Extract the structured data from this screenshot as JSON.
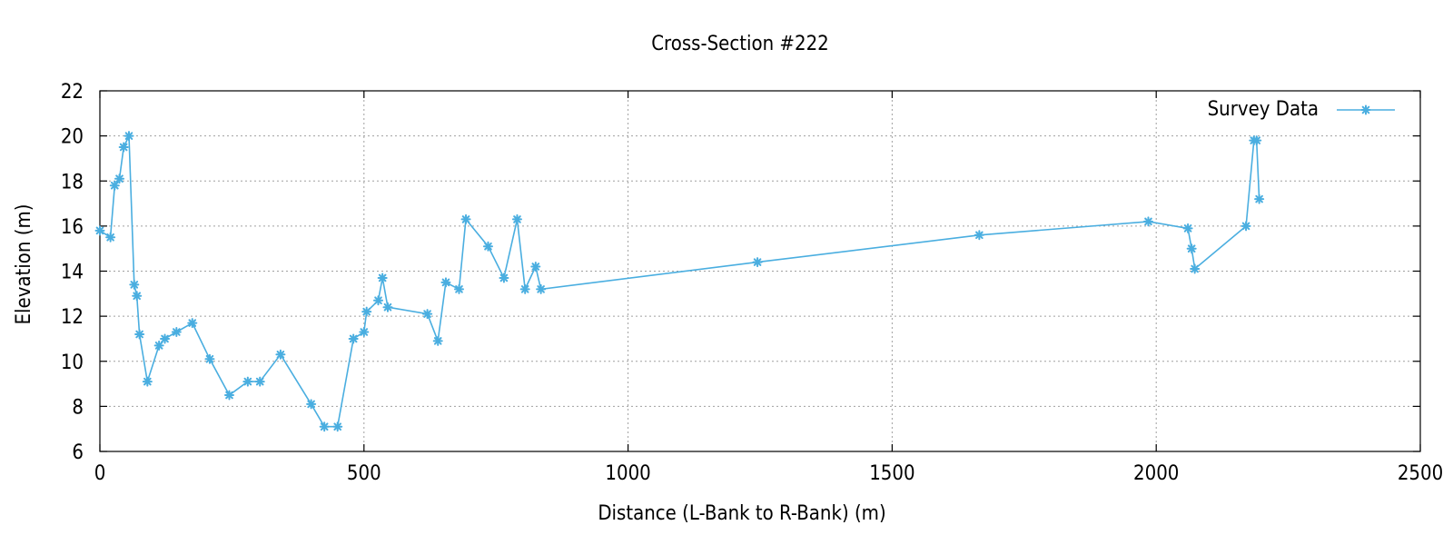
{
  "chart_data": {
    "type": "line",
    "title": "Cross-Section #222",
    "xlabel": "Distance (L-Bank to R-Bank) (m)",
    "ylabel": "Elevation (m)",
    "xlim": [
      0,
      2500
    ],
    "ylim": [
      6,
      22
    ],
    "xticks": [
      0,
      500,
      1000,
      1500,
      2000,
      2500
    ],
    "yticks": [
      6,
      8,
      10,
      12,
      14,
      16,
      18,
      20,
      22
    ],
    "grid": true,
    "legend_position": "top-right",
    "series": [
      {
        "name": "Survey Data",
        "color": "#4aaee0",
        "marker": "asterisk",
        "x": [
          0,
          20,
          28,
          37,
          45,
          55,
          65,
          70,
          75,
          90,
          112,
          123,
          145,
          175,
          208,
          245,
          280,
          303,
          342,
          400,
          425,
          450,
          480,
          500,
          505,
          527,
          535,
          545,
          620,
          640,
          655,
          680,
          693,
          735,
          765,
          790,
          805,
          825,
          835,
          1245,
          1665,
          1985,
          2060,
          2067,
          2073,
          2170,
          2185,
          2190,
          2195
        ],
        "y": [
          15.8,
          15.5,
          17.8,
          18.1,
          19.5,
          20.0,
          13.4,
          12.9,
          11.2,
          9.1,
          10.7,
          11.0,
          11.3,
          11.7,
          10.1,
          8.5,
          9.1,
          9.1,
          10.3,
          8.1,
          7.1,
          7.1,
          11.0,
          11.3,
          12.2,
          12.7,
          13.7,
          12.4,
          12.1,
          10.9,
          13.5,
          13.2,
          16.3,
          15.1,
          13.7,
          16.3,
          13.2,
          14.2,
          13.2,
          14.4,
          15.6,
          16.2,
          15.9,
          15.0,
          14.1,
          16.0,
          19.8,
          19.8,
          17.2
        ]
      }
    ]
  }
}
